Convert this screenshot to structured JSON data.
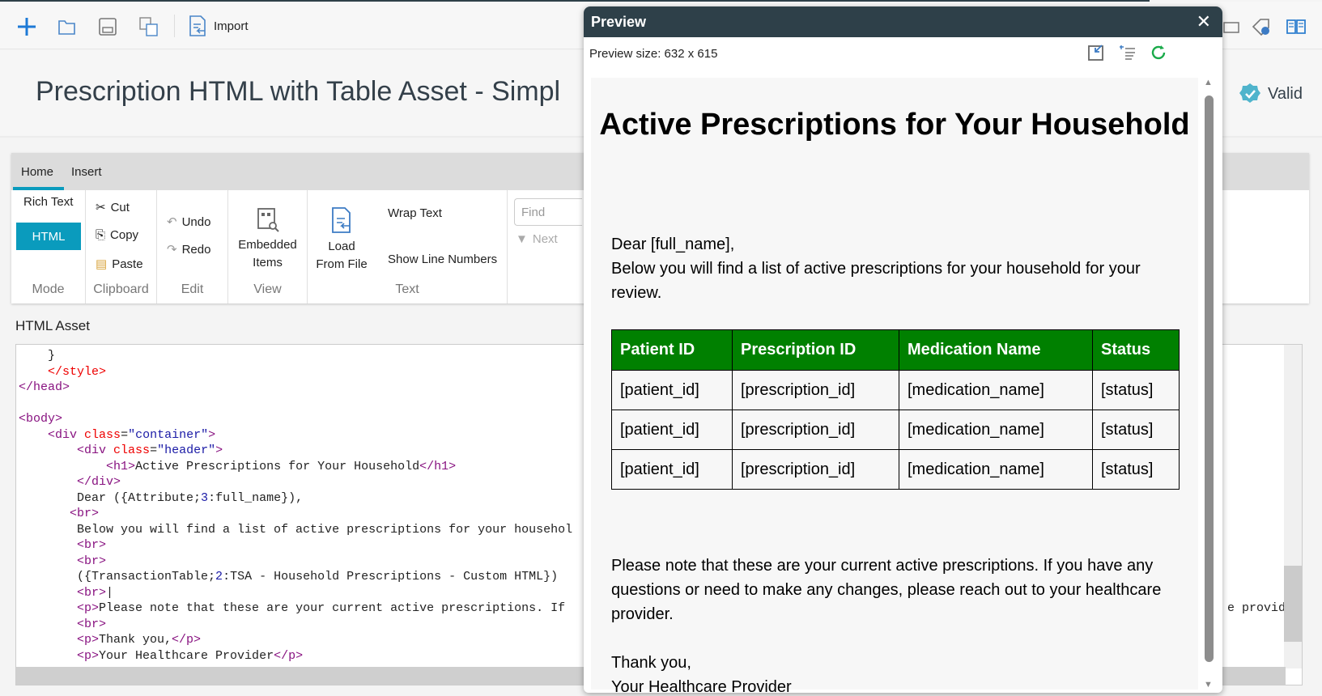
{
  "toolbar": {
    "import_label": "Import",
    "icons": [
      "plus-icon",
      "folder-open-icon",
      "save-icon",
      "save-as-icon",
      "import-icon",
      "print-icon",
      "tag-code-icon",
      "book-icon"
    ]
  },
  "header": {
    "title": "Prescription HTML with Table Asset - Simpl",
    "status": "Valid"
  },
  "ribbon": {
    "tabs": [
      "Home",
      "Insert"
    ],
    "mode": {
      "label": "Mode",
      "rich_text": "Rich Text",
      "html": "HTML"
    },
    "clipboard": {
      "label": "Clipboard",
      "cut": "Cut",
      "copy": "Copy",
      "paste": "Paste"
    },
    "edit": {
      "label": "Edit",
      "undo": "Undo",
      "redo": "Redo"
    },
    "view": {
      "label": "View",
      "embedded": "Embedded",
      "items": "Items"
    },
    "text": {
      "label": "Text",
      "load": "Load",
      "from_file": "From File",
      "wrap": "Wrap Text",
      "line_numbers": "Show Line Numbers"
    },
    "find": {
      "placeholder": "Find",
      "next": "Next"
    }
  },
  "editor": {
    "label": "HTML Asset",
    "overflow_text": "e provide"
  },
  "preview": {
    "title": "Preview",
    "size": "Preview size: 632 x 615",
    "heading": "Active Prescriptions for Your Household",
    "greeting": "Dear [full_name],",
    "intro_1": "Below you will find a list of active prescriptions for your household for your",
    "intro_2": "review.",
    "table": {
      "headers": [
        "Patient ID",
        "Prescription ID",
        "Medication Name",
        "Status"
      ],
      "rows": [
        [
          "[patient_id]",
          "[prescription_id]",
          "[medication_name]",
          "[status]"
        ],
        [
          "[patient_id]",
          "[prescription_id]",
          "[medication_name]",
          "[status]"
        ],
        [
          "[patient_id]",
          "[prescription_id]",
          "[medication_name]",
          "[status]"
        ]
      ]
    },
    "note_1": "Please note that these are your current active prescriptions. If you have any",
    "note_2": "questions or need to make any changes, please reach out to your healthcare",
    "note_3": "provider.",
    "thanks": "Thank you,",
    "signature": "Your Healthcare Provider"
  },
  "colors": {
    "accent": "#0a9bbd",
    "dialog_header": "#2e4049",
    "table_header": "#008000"
  }
}
